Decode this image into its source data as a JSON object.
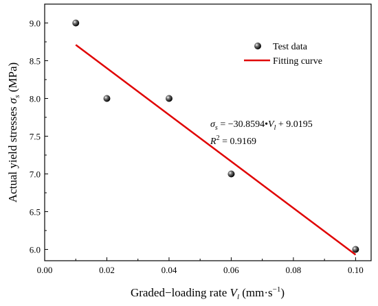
{
  "chart_data": {
    "type": "scatter",
    "title": "",
    "xlabel_main": "Graded−loading rate ",
    "xlabel_var": "V",
    "xlabel_sub": "l",
    "xlabel_unit_pre": " (mm·s",
    "xlabel_unit_sup": "−1",
    "xlabel_unit_post": ")",
    "ylabel_main": "Actual yield stresses ",
    "ylabel_var": "σ",
    "ylabel_sub": "s",
    "ylabel_unit": " (MPa)",
    "xlim": [
      0.0,
      0.105
    ],
    "ylim": [
      5.85,
      9.25
    ],
    "xticks": [
      "0.00",
      "0.02",
      "0.04",
      "0.06",
      "0.08",
      "0.10"
    ],
    "xtick_values": [
      0.0,
      0.02,
      0.04,
      0.06,
      0.08,
      0.1
    ],
    "yticks": [
      "6.0",
      "6.5",
      "7.0",
      "7.5",
      "8.0",
      "8.5",
      "9.0"
    ],
    "ytick_values": [
      6.0,
      6.5,
      7.0,
      7.5,
      8.0,
      8.5,
      9.0
    ],
    "grid": false,
    "legend_position": "top-right",
    "series": [
      {
        "name": "Test data",
        "kind": "scatter",
        "color": "#000000",
        "x": [
          0.01,
          0.02,
          0.04,
          0.06,
          0.1
        ],
        "y": [
          9.0,
          8.0,
          8.0,
          7.0,
          6.0
        ]
      },
      {
        "name": "Fitting curve",
        "kind": "line",
        "color": "#e00000",
        "x": [
          0.01,
          0.1
        ],
        "y": [
          8.71,
          5.93
        ]
      }
    ],
    "annotation": {
      "eq_lhs": "σ",
      "eq_lhs_sub": "s",
      "eq_rhs_a": " = −30.8594•",
      "eq_rhs_var": "V",
      "eq_rhs_var_sub": "l",
      "eq_rhs_b": " + 9.0195",
      "r2_lhs": "R",
      "r2_sup": "2",
      "r2_rhs": " = 0.9169"
    }
  }
}
